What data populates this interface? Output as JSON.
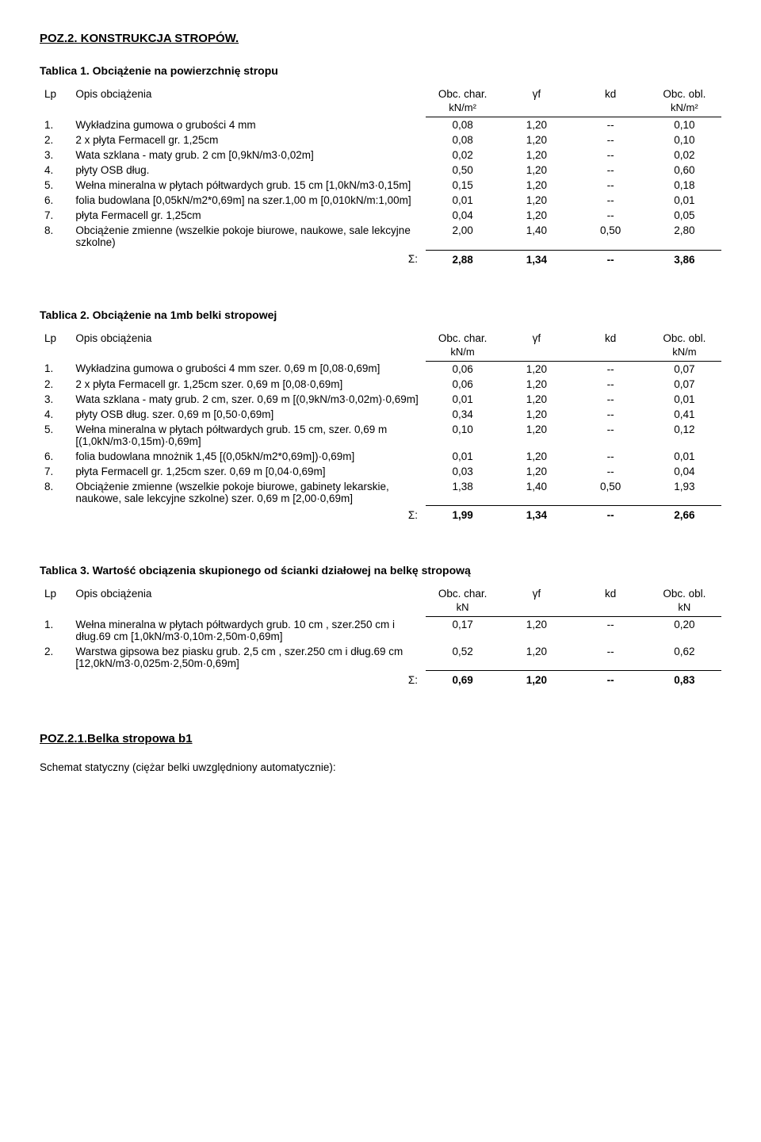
{
  "section_title": "POZ.2. KONSTRUKCJA  STROPÓW.",
  "tables": [
    {
      "title": "Tablica 1. Obciążenie na powierzchnię stropu",
      "headers": {
        "lp": "Lp",
        "desc": "Opis obciążenia",
        "c1": "Obc. char.",
        "c2": "γf",
        "c3": "kd",
        "c4": "Obc. obl."
      },
      "units": {
        "c1": "kN/m²",
        "c4": "kN/m²"
      },
      "rows": [
        {
          "lp": "1.",
          "desc": "Wykładzina gumowa o grubości 4 mm",
          "c1": "0,08",
          "c2": "1,20",
          "c3": "--",
          "c4": "0,10"
        },
        {
          "lp": "2.",
          "desc": "2 x płyta Fermacell gr. 1,25cm",
          "c1": "0,08",
          "c2": "1,20",
          "c3": "--",
          "c4": "0,10"
        },
        {
          "lp": "3.",
          "desc": "Wata szklana - maty grub. 2 cm [0,9kN/m3·0,02m]",
          "c1": "0,02",
          "c2": "1,20",
          "c3": "--",
          "c4": "0,02"
        },
        {
          "lp": "4.",
          "desc": "płyty OSB dług.",
          "c1": "0,50",
          "c2": "1,20",
          "c3": "--",
          "c4": "0,60"
        },
        {
          "lp": "5.",
          "desc": "Wełna mineralna w płytach półtwardych grub. 15 cm  [1,0kN/m3·0,15m]",
          "c1": "0,15",
          "c2": "1,20",
          "c3": "--",
          "c4": "0,18"
        },
        {
          "lp": "6.",
          "desc": "folia budowlana [0,05kN/m2*0,69m]  na szer.1,00 m  [0,010kN/m:1,00m]",
          "c1": "0,01",
          "c2": "1,20",
          "c3": "--",
          "c4": "0,01"
        },
        {
          "lp": "7.",
          "desc": "płyta Fermacell gr. 1,25cm",
          "c1": "0,04",
          "c2": "1,20",
          "c3": "--",
          "c4": "0,05"
        },
        {
          "lp": "8.",
          "desc": "Obciążenie zmienne (wszelkie pokoje biurowe, naukowe, sale lekcyjne szkolne)",
          "c1": "2,00",
          "c2": "1,40",
          "c3": "0,50",
          "c4": "2,80"
        }
      ],
      "sigma": {
        "label": "Σ:",
        "c1": "2,88",
        "c2": "1,34",
        "c3": "--",
        "c4": "3,86"
      }
    },
    {
      "title": "Tablica 2. Obciążenie na 1mb belki stropowej",
      "headers": {
        "lp": "Lp",
        "desc": "Opis obciążenia",
        "c1": "Obc. char.",
        "c2": "γf",
        "c3": "kd",
        "c4": "Obc. obl."
      },
      "units": {
        "c1": "kN/m",
        "c4": "kN/m"
      },
      "rows": [
        {
          "lp": "1.",
          "desc": "Wykładzina gumowa o grubości 4 mm  szer. 0,69 m [0,08·0,69m]",
          "c1": "0,06",
          "c2": "1,20",
          "c3": "--",
          "c4": "0,07"
        },
        {
          "lp": "2.",
          "desc": "2 x płyta Fermacell gr. 1,25cm  szer. 0,69 m [0,08·0,69m]",
          "c1": "0,06",
          "c2": "1,20",
          "c3": "--",
          "c4": "0,07"
        },
        {
          "lp": "3.",
          "desc": "Wata szklana - maty grub. 2 cm, szer. 0,69 m [(0,9kN/m3·0,02m)·0,69m]",
          "c1": "0,01",
          "c2": "1,20",
          "c3": "--",
          "c4": "0,01"
        },
        {
          "lp": "4.",
          "desc": "płyty OSB dług.  szer. 0,69 m [0,50·0,69m]",
          "c1": "0,34",
          "c2": "1,20",
          "c3": "--",
          "c4": "0,41"
        },
        {
          "lp": "5.",
          "desc": "Wełna mineralna w płytach półtwardych grub. 15 cm, szer. 0,69 m [(1,0kN/m3·0,15m)·0,69m]",
          "c1": "0,10",
          "c2": "1,20",
          "c3": "--",
          "c4": "0,12"
        },
        {
          "lp": "6.",
          "desc": "folia budowlana mnożnik 1,45 [(0,05kN/m2*0,69m])·0,69m]",
          "c1": "0,01",
          "c2": "1,20",
          "c3": "--",
          "c4": "0,01"
        },
        {
          "lp": "7.",
          "desc": "płyta Fermacell gr. 1,25cm  szer. 0,69 m [0,04·0,69m]",
          "c1": "0,03",
          "c2": "1,20",
          "c3": "--",
          "c4": "0,04"
        },
        {
          "lp": "8.",
          "desc": "Obciążenie zmienne (wszelkie pokoje biurowe, gabinety lekarskie, naukowe, sale lekcyjne szkolne) szer. 0,69 m [2,00·0,69m]",
          "c1": "1,38",
          "c2": "1,40",
          "c3": "0,50",
          "c4": "1,93"
        }
      ],
      "sigma": {
        "label": "Σ:",
        "c1": "1,99",
        "c2": "1,34",
        "c3": "--",
        "c4": "2,66"
      }
    },
    {
      "title": "Tablica 3. Wartość obciązenia skupionego od ścianki działowej na belkę stropową",
      "headers": {
        "lp": "Lp",
        "desc": "Opis obciążenia",
        "c1": "Obc. char.",
        "c2": "γf",
        "c3": "kd",
        "c4": "Obc. obl."
      },
      "units": {
        "c1": "kN",
        "c4": "kN"
      },
      "rows": [
        {
          "lp": "1.",
          "desc": "Wełna mineralna w płytach półtwardych grub. 10 cm , szer.250 cm i dług.69 cm [1,0kN/m3·0,10m·2,50m·0,69m]",
          "c1": "0,17",
          "c2": "1,20",
          "c3": "--",
          "c4": "0,20"
        },
        {
          "lp": "2.",
          "desc": "Warstwa gipsowa bez piasku grub. 2,5 cm , szer.250 cm i dług.69 cm [12,0kN/m3·0,025m·2,50m·0,69m]",
          "c1": "0,52",
          "c2": "1,20",
          "c3": "--",
          "c4": "0,62"
        }
      ],
      "sigma": {
        "label": "Σ:",
        "c1": "0,69",
        "c2": "1,20",
        "c3": "--",
        "c4": "0,83"
      }
    }
  ],
  "subsection_title": "POZ.2.1.Belka stropowa  b1",
  "footer_line": "Schemat statyczny (ciężar belki uwzględniony automatycznie):"
}
